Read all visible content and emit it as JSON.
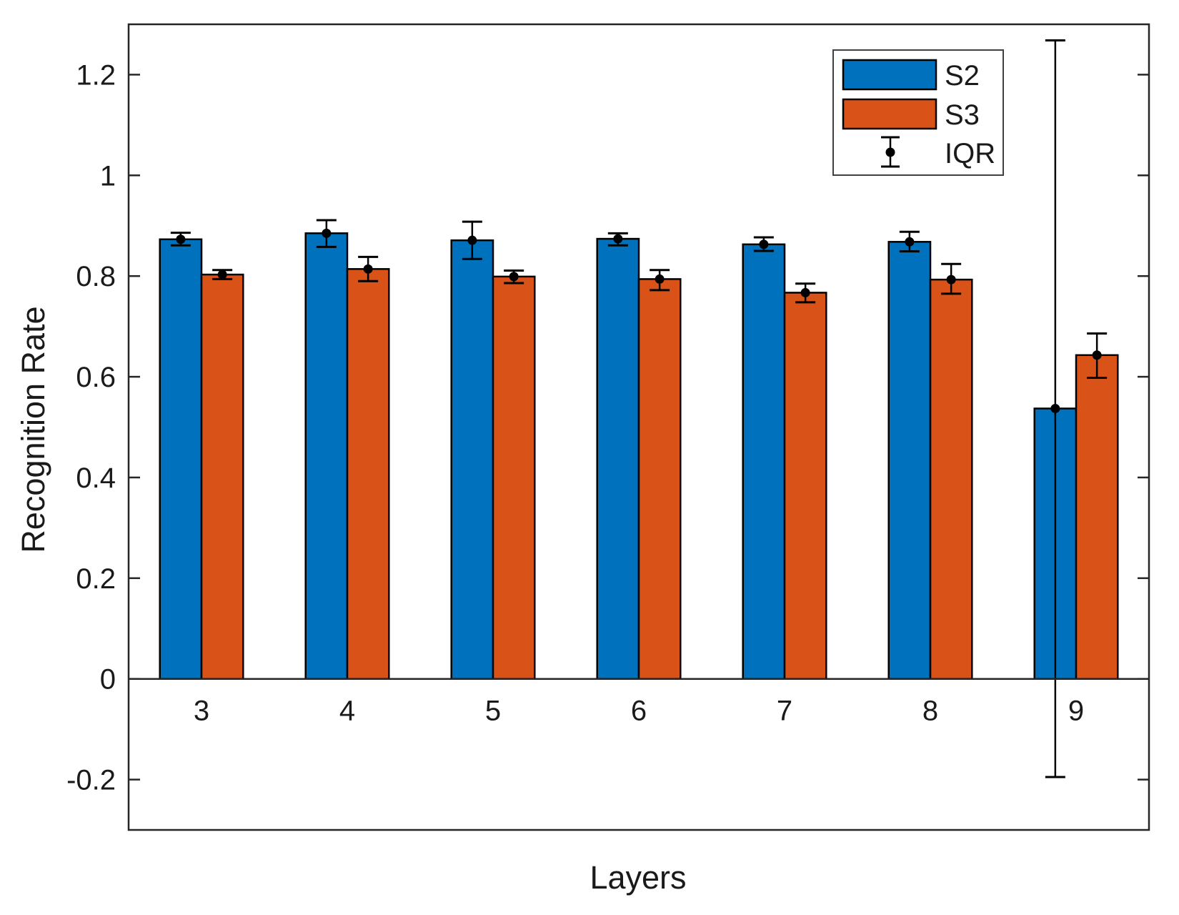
{
  "chart_data": {
    "type": "bar",
    "title": "",
    "xlabel": "Layers",
    "ylabel": "Recognition Rate",
    "categories": [
      "3",
      "4",
      "5",
      "6",
      "7",
      "8",
      "9"
    ],
    "series": [
      {
        "name": "S2",
        "color": "#0072BD",
        "values": [
          0.873,
          0.885,
          0.871,
          0.874,
          0.863,
          0.868,
          0.537
        ],
        "iqr_low": [
          0.861,
          0.858,
          0.834,
          0.861,
          0.85,
          0.849,
          -0.195
        ],
        "iqr_high": [
          0.886,
          0.911,
          0.908,
          0.885,
          0.877,
          0.888,
          1.268
        ]
      },
      {
        "name": "S3",
        "color": "#D95319",
        "values": [
          0.803,
          0.814,
          0.799,
          0.794,
          0.767,
          0.793,
          0.643
        ],
        "iqr_low": [
          0.794,
          0.79,
          0.786,
          0.772,
          0.748,
          0.765,
          0.598
        ],
        "iqr_high": [
          0.812,
          0.838,
          0.811,
          0.812,
          0.785,
          0.824,
          0.686
        ]
      }
    ],
    "legend": {
      "entries": [
        "S2",
        "S3",
        "IQR"
      ],
      "position": "top-right"
    },
    "xlim": [
      2.5,
      9.5
    ],
    "ylim": [
      -0.3,
      1.3
    ],
    "yticks": [
      -0.2,
      0,
      0.2,
      0.4,
      0.6,
      0.8,
      1,
      1.2
    ],
    "ytick_labels": [
      "-0.2",
      "0",
      "0.2",
      "0.4",
      "0.6",
      "0.8",
      "1",
      "1.2"
    ],
    "grid": false,
    "error_bar_color": "#000000",
    "axis_color": "#262626",
    "bar_edge_color": "#000000"
  }
}
